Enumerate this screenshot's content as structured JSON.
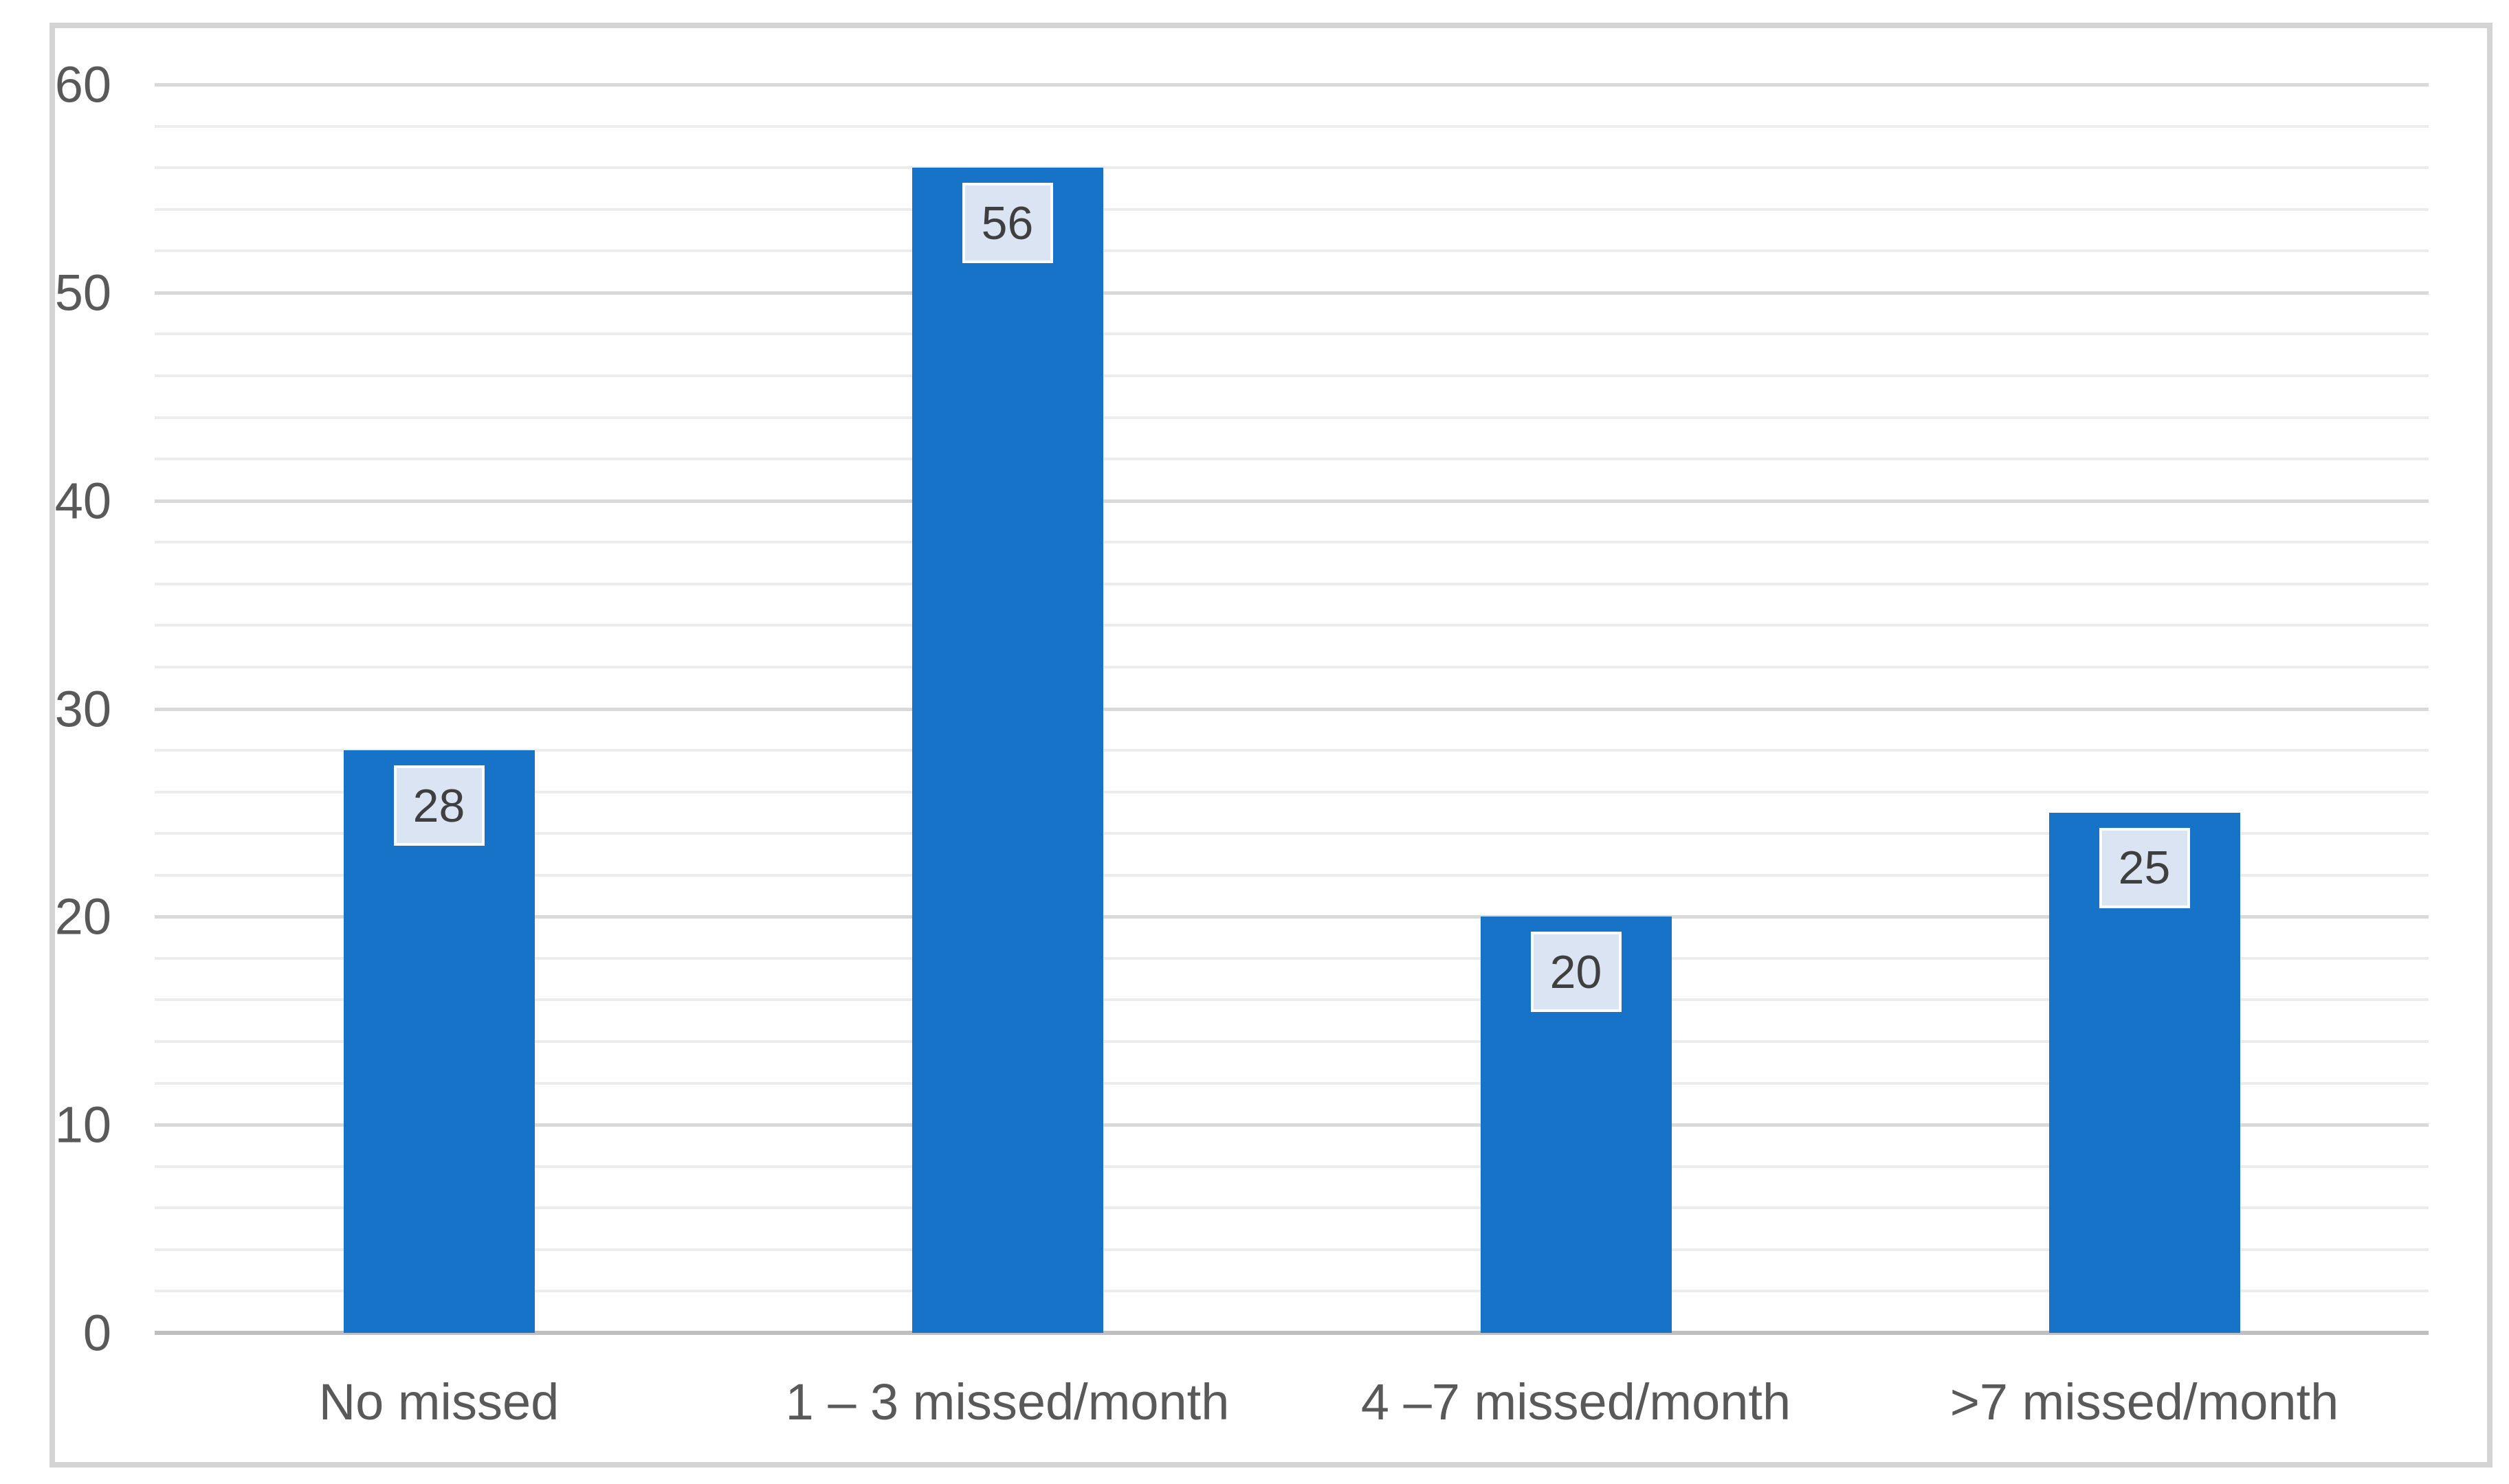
{
  "figure": {
    "background": "#ffffff",
    "border_color": "#d4d4d4"
  },
  "chart_data": {
    "type": "bar",
    "title": "",
    "xlabel": "",
    "ylabel": "",
    "categories": [
      "No missed",
      "1 – 3 missed/month",
      "4 –7 missed/month",
      ">7 missed/month"
    ],
    "values": [
      28,
      56,
      20,
      25
    ],
    "data_labels": [
      "28",
      "56",
      "20",
      "25"
    ],
    "y_tick_labels": [
      "0",
      "10",
      "20",
      "30",
      "40",
      "50",
      "60"
    ],
    "ylim": [
      0,
      60
    ],
    "y_major_unit": 10,
    "y_minor_unit": 2,
    "grid": "horizontal major+minor",
    "legend": "none",
    "colors": {
      "bar_fill": "#1673c8",
      "data_label_box_fill": "#dbe4f2",
      "data_label_text": "#3f3f3f",
      "axis_text": "#595959",
      "major_grid": "#d9d9d9",
      "minor_grid": "#ececec",
      "axis_line": "#bfbfbf"
    }
  }
}
